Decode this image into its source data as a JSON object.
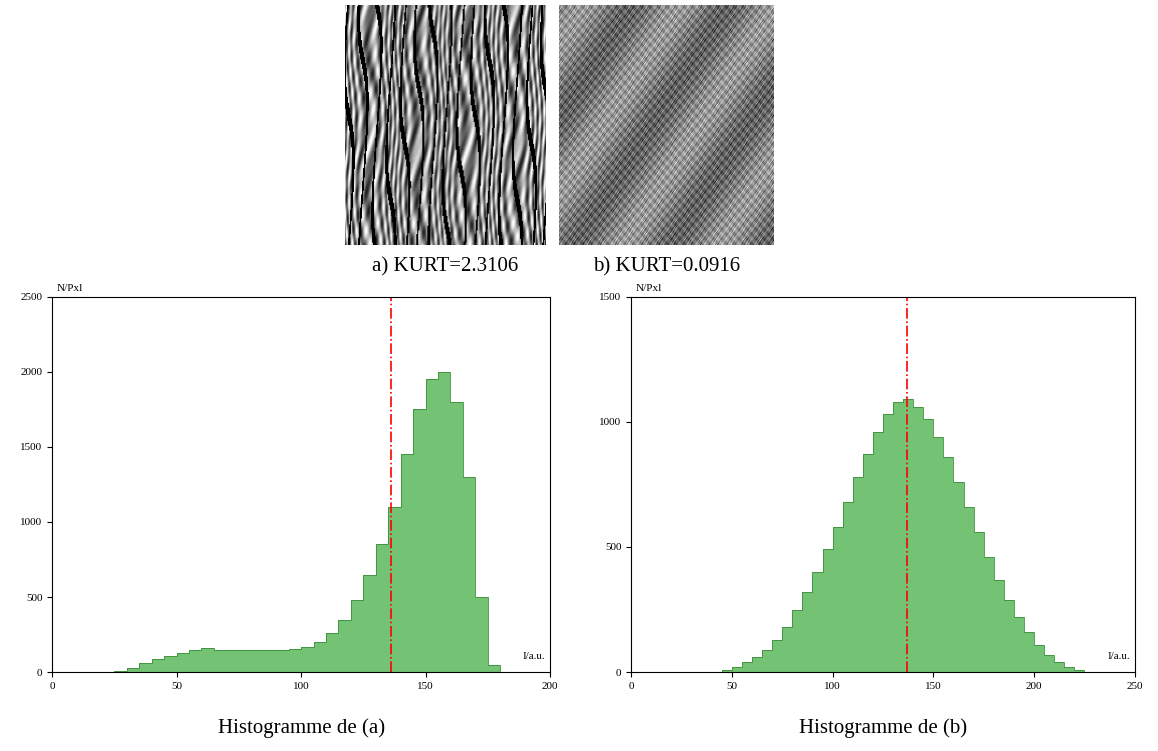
{
  "images": [
    {
      "caption": "a) KURT=2.3106"
    },
    {
      "caption": "b) KURT=0.0916"
    }
  ],
  "chart_data": [
    {
      "type": "histogram",
      "title": "Histogramme de (a)",
      "x_label": "I/a.u.",
      "y_label": "N/Pxl",
      "bins": [
        0,
        5,
        10,
        15,
        20,
        25,
        30,
        35,
        40,
        45,
        50,
        55,
        60,
        65,
        70,
        75,
        80,
        85,
        90,
        95,
        100,
        105,
        110,
        115,
        120,
        125,
        130,
        135,
        140,
        145,
        150,
        155,
        160,
        165,
        170,
        175,
        180,
        185,
        190,
        195,
        200
      ],
      "counts": [
        0,
        0,
        0,
        0,
        0,
        10,
        30,
        60,
        90,
        110,
        130,
        150,
        160,
        150,
        150,
        145,
        145,
        145,
        150,
        155,
        170,
        200,
        260,
        350,
        480,
        650,
        850,
        1100,
        1450,
        1750,
        1950,
        2000,
        1800,
        1300,
        500,
        50,
        0,
        0,
        0,
        0
      ],
      "mean_line": 136,
      "color": "#5cb85c",
      "xlim": [
        0,
        200
      ],
      "xticks": [
        0,
        50,
        100,
        150,
        200
      ],
      "ylim": [
        0,
        2500
      ],
      "yticks": [
        0,
        500,
        1000,
        1500,
        2000,
        2500
      ]
    },
    {
      "type": "histogram",
      "title": "Histogramme de (b)",
      "x_label": "I/a.u.",
      "y_label": "N/Pxl",
      "bins": [
        0,
        5,
        10,
        15,
        20,
        25,
        30,
        35,
        40,
        45,
        50,
        55,
        60,
        65,
        70,
        75,
        80,
        85,
        90,
        95,
        100,
        105,
        110,
        115,
        120,
        125,
        130,
        135,
        140,
        145,
        150,
        155,
        160,
        165,
        170,
        175,
        180,
        185,
        190,
        195,
        200,
        205,
        210,
        215,
        220,
        225,
        230,
        235,
        240,
        245,
        250
      ],
      "counts": [
        0,
        0,
        0,
        0,
        0,
        0,
        0,
        0,
        0,
        10,
        20,
        40,
        60,
        90,
        130,
        180,
        250,
        320,
        400,
        490,
        580,
        680,
        780,
        870,
        960,
        1030,
        1080,
        1090,
        1060,
        1010,
        940,
        860,
        760,
        660,
        560,
        460,
        370,
        290,
        220,
        160,
        110,
        70,
        40,
        20,
        10,
        0,
        0,
        0,
        0,
        0
      ],
      "mean_line": 137,
      "color": "#5cb85c",
      "xlim": [
        0,
        250
      ],
      "xticks": [
        0,
        50,
        100,
        150,
        200,
        250
      ],
      "ylim": [
        0,
        1500
      ],
      "yticks": [
        0,
        500,
        1000,
        1500
      ]
    }
  ]
}
